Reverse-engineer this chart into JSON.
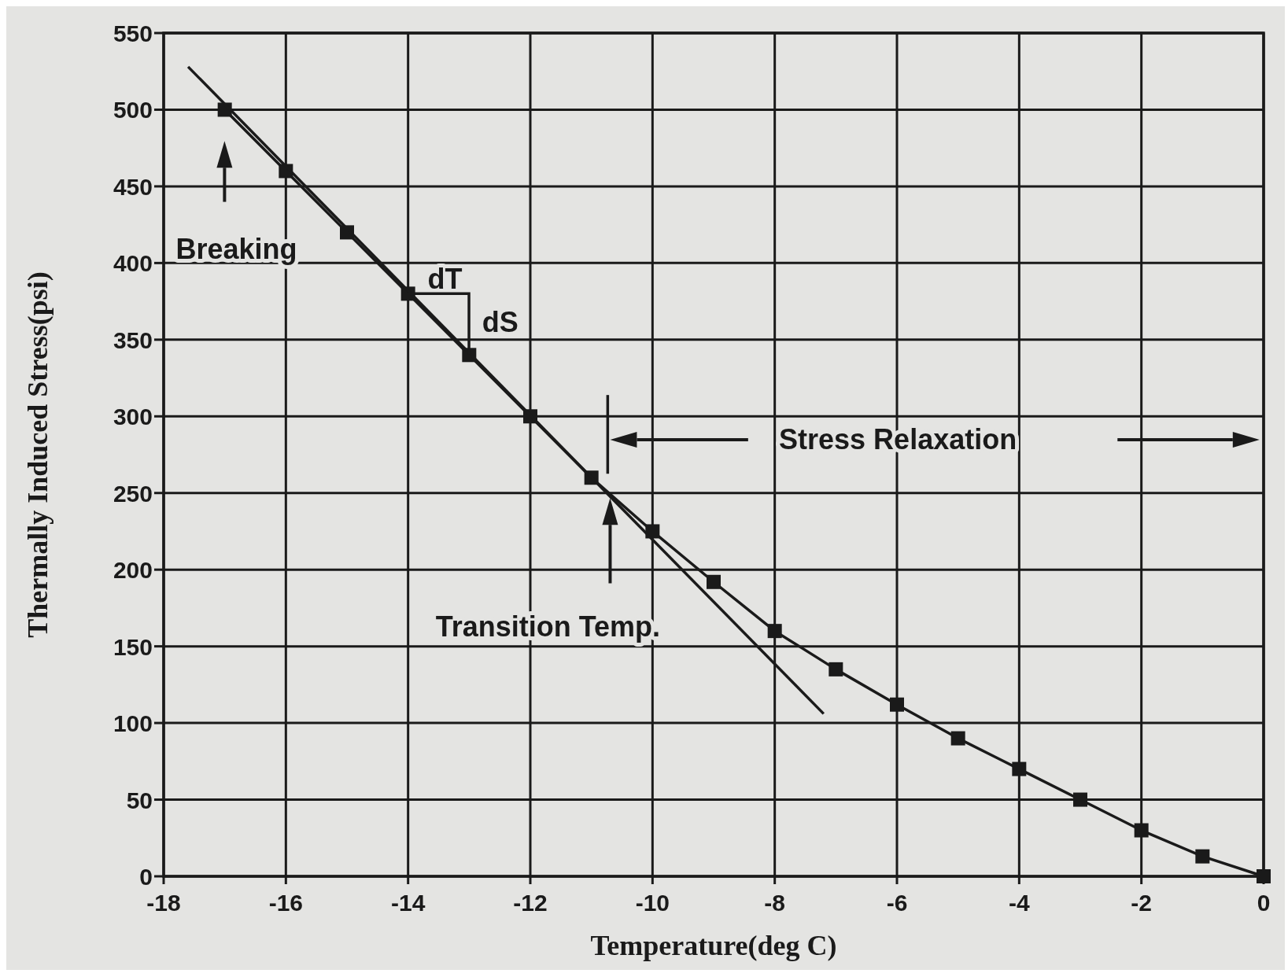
{
  "chart_data": {
    "type": "line",
    "xlabel": "Temperature(deg C)",
    "ylabel": "Thermally Induced Stress(psi)",
    "xlim": [
      -18,
      0
    ],
    "ylim": [
      0,
      550
    ],
    "xticks": [
      -18,
      -16,
      -14,
      -12,
      -10,
      -8,
      -6,
      -4,
      -2,
      0
    ],
    "yticks": [
      0,
      50,
      100,
      150,
      200,
      250,
      300,
      350,
      400,
      450,
      500,
      550
    ],
    "grid": true,
    "series": [
      {
        "color": "#1a1a1a",
        "marker": "square",
        "x": [
          -17,
          -16,
          -15,
          -14,
          -13,
          -12,
          -11,
          -10,
          -9,
          -8,
          -7,
          -6,
          -5,
          -4,
          -3,
          -2,
          -1,
          0
        ],
        "values": [
          500,
          460,
          420,
          380,
          340,
          300,
          260,
          225,
          192,
          160,
          135,
          112,
          90,
          70,
          50,
          30,
          13,
          0
        ]
      },
      {
        "color": "#1a1a1a",
        "marker": "none",
        "x": [
          -17.6,
          -7.2
        ],
        "values": [
          528,
          106
        ]
      }
    ],
    "annotations": [
      "Breaking",
      {
        "text": "dT",
        "x": -14,
        "y": 380
      },
      {
        "text": "dS",
        "x": -13,
        "y": 340
      },
      "Transition Temp.",
      "Stress Relaxation"
    ]
  }
}
